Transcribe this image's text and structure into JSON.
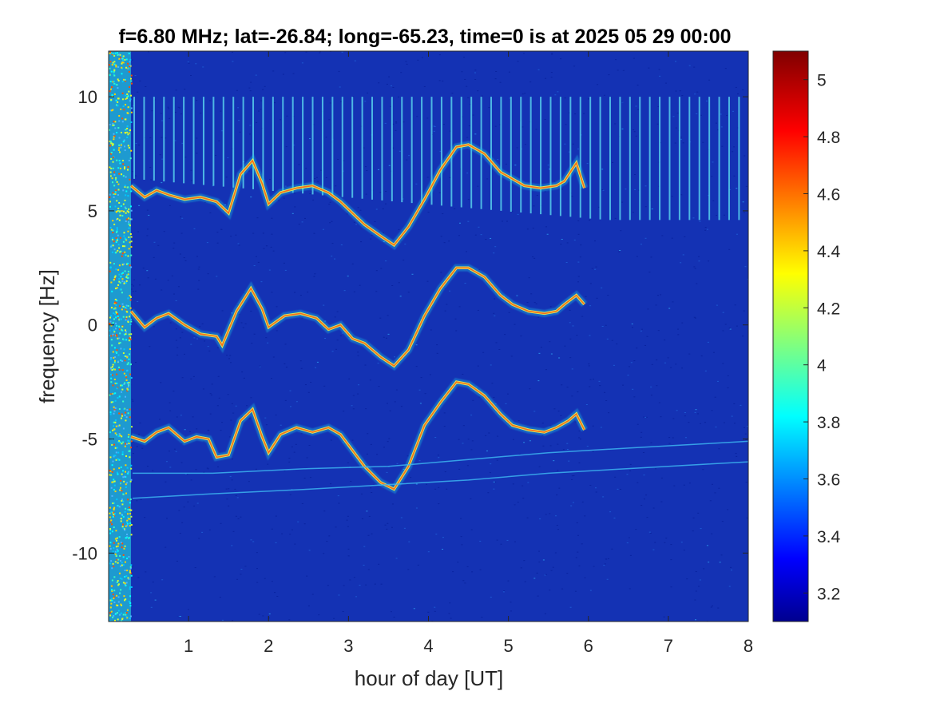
{
  "chart_data": {
    "type": "heatmap",
    "title": "f=6.80 MHz;  lat=-26.84; long=-65.23, time=0 is at 2025 05 29 00:00",
    "xlabel": "hour of day [UT]",
    "ylabel": "frequency [Hz]",
    "xlim": [
      0,
      8
    ],
    "ylim": [
      -13,
      12
    ],
    "x_ticks": [
      1,
      2,
      3,
      4,
      5,
      6,
      7,
      8
    ],
    "x_tick_labels": [
      "1",
      "2",
      "3",
      "4",
      "5",
      "6",
      "7",
      "8"
    ],
    "y_ticks": [
      10,
      5,
      0,
      -5,
      -10
    ],
    "y_tick_labels": [
      "10",
      "5",
      "0",
      "-5",
      "-10"
    ],
    "colormap": "jet",
    "background_color": "#1432b4",
    "colorbar": {
      "clim": [
        3.1,
        5.1
      ],
      "ticks": [
        5,
        4.8,
        4.6,
        4.4,
        4.2,
        4,
        3.8,
        3.6,
        3.4,
        3.2
      ],
      "tick_labels": [
        "5",
        "4.8",
        "4.6",
        "4.4",
        "4.2",
        "4",
        "3.8",
        "3.6",
        "3.4",
        "3.2"
      ]
    },
    "features": {
      "broadband_noise_band": {
        "x_range": [
          0.0,
          0.28
        ]
      },
      "comb_lines": {
        "x_start": 0.32,
        "x_end": 8.0,
        "spacing_hours": 0.124,
        "y_top": 10.0,
        "y_bottom_start": 6.4,
        "y_bottom_end": 4.6
      },
      "echo_traces": [
        {
          "name": "upper",
          "points": [
            [
              0.28,
              6.1
            ],
            [
              0.45,
              5.6
            ],
            [
              0.6,
              5.9
            ],
            [
              0.75,
              5.7
            ],
            [
              0.95,
              5.5
            ],
            [
              1.15,
              5.6
            ],
            [
              1.35,
              5.4
            ],
            [
              1.5,
              4.9
            ],
            [
              1.65,
              6.6
            ],
            [
              1.8,
              7.2
            ],
            [
              1.92,
              6.2
            ],
            [
              2.0,
              5.3
            ],
            [
              2.15,
              5.8
            ],
            [
              2.35,
              6.0
            ],
            [
              2.55,
              6.1
            ],
            [
              2.75,
              5.8
            ],
            [
              2.9,
              5.4
            ],
            [
              3.05,
              4.9
            ],
            [
              3.2,
              4.4
            ],
            [
              3.4,
              3.9
            ],
            [
              3.57,
              3.5
            ],
            [
              3.75,
              4.3
            ],
            [
              3.95,
              5.5
            ],
            [
              4.15,
              6.8
            ],
            [
              4.35,
              7.8
            ],
            [
              4.5,
              7.9
            ],
            [
              4.7,
              7.5
            ],
            [
              4.9,
              6.7
            ],
            [
              5.05,
              6.4
            ],
            [
              5.2,
              6.1
            ],
            [
              5.4,
              6.0
            ],
            [
              5.6,
              6.1
            ],
            [
              5.7,
              6.3
            ],
            [
              5.85,
              7.1
            ],
            [
              5.95,
              6.0
            ]
          ]
        },
        {
          "name": "middle",
          "points": [
            [
              0.28,
              0.6
            ],
            [
              0.45,
              -0.1
            ],
            [
              0.6,
              0.3
            ],
            [
              0.75,
              0.5
            ],
            [
              0.95,
              0.0
            ],
            [
              1.15,
              -0.4
            ],
            [
              1.35,
              -0.5
            ],
            [
              1.42,
              -0.9
            ],
            [
              1.6,
              0.6
            ],
            [
              1.78,
              1.6
            ],
            [
              1.92,
              0.7
            ],
            [
              2.0,
              -0.1
            ],
            [
              2.2,
              0.4
            ],
            [
              2.4,
              0.5
            ],
            [
              2.6,
              0.3
            ],
            [
              2.75,
              -0.2
            ],
            [
              2.9,
              0.0
            ],
            [
              3.05,
              -0.6
            ],
            [
              3.2,
              -0.8
            ],
            [
              3.4,
              -1.4
            ],
            [
              3.57,
              -1.8
            ],
            [
              3.75,
              -1.1
            ],
            [
              3.95,
              0.4
            ],
            [
              4.15,
              1.6
            ],
            [
              4.35,
              2.5
            ],
            [
              4.5,
              2.5
            ],
            [
              4.7,
              2.1
            ],
            [
              4.9,
              1.3
            ],
            [
              5.05,
              0.9
            ],
            [
              5.25,
              0.6
            ],
            [
              5.45,
              0.5
            ],
            [
              5.6,
              0.6
            ],
            [
              5.7,
              0.9
            ],
            [
              5.85,
              1.3
            ],
            [
              5.95,
              0.9
            ]
          ]
        },
        {
          "name": "lower",
          "points": [
            [
              0.28,
              -4.9
            ],
            [
              0.45,
              -5.1
            ],
            [
              0.6,
              -4.7
            ],
            [
              0.75,
              -4.5
            ],
            [
              0.95,
              -5.1
            ],
            [
              1.1,
              -4.9
            ],
            [
              1.25,
              -5.0
            ],
            [
              1.35,
              -5.8
            ],
            [
              1.5,
              -5.7
            ],
            [
              1.65,
              -4.2
            ],
            [
              1.8,
              -3.7
            ],
            [
              1.92,
              -4.9
            ],
            [
              2.0,
              -5.6
            ],
            [
              2.15,
              -4.8
            ],
            [
              2.35,
              -4.5
            ],
            [
              2.55,
              -4.7
            ],
            [
              2.75,
              -4.5
            ],
            [
              2.9,
              -4.8
            ],
            [
              3.05,
              -5.5
            ],
            [
              3.2,
              -6.2
            ],
            [
              3.4,
              -6.9
            ],
            [
              3.57,
              -7.2
            ],
            [
              3.75,
              -6.2
            ],
            [
              3.95,
              -4.4
            ],
            [
              4.15,
              -3.4
            ],
            [
              4.35,
              -2.5
            ],
            [
              4.5,
              -2.6
            ],
            [
              4.7,
              -3.1
            ],
            [
              4.9,
              -3.9
            ],
            [
              5.05,
              -4.4
            ],
            [
              5.25,
              -4.6
            ],
            [
              5.45,
              -4.7
            ],
            [
              5.6,
              -4.5
            ],
            [
              5.75,
              -4.2
            ],
            [
              5.85,
              -3.9
            ],
            [
              5.95,
              -4.6
            ]
          ]
        },
        {
          "name": "faint-line-a",
          "points": [
            [
              0.3,
              -6.5
            ],
            [
              1.3,
              -6.5
            ],
            [
              2.5,
              -6.3
            ],
            [
              3.5,
              -6.2
            ],
            [
              4.5,
              -5.9
            ],
            [
              5.5,
              -5.6
            ],
            [
              6.5,
              -5.4
            ],
            [
              7.5,
              -5.2
            ],
            [
              8.0,
              -5.1
            ]
          ]
        },
        {
          "name": "faint-line-b",
          "points": [
            [
              0.3,
              -7.6
            ],
            [
              1.3,
              -7.4
            ],
            [
              2.5,
              -7.2
            ],
            [
              3.5,
              -7.0
            ],
            [
              4.5,
              -6.8
            ],
            [
              5.5,
              -6.5
            ],
            [
              6.5,
              -6.3
            ],
            [
              7.5,
              -6.1
            ],
            [
              8.0,
              -6.0
            ]
          ]
        }
      ]
    }
  }
}
